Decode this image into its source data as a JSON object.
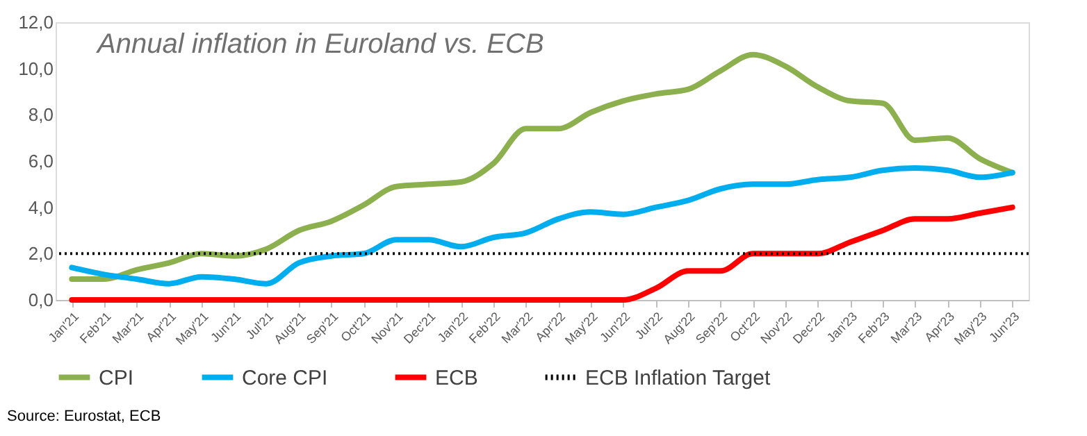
{
  "chart_data": {
    "type": "line",
    "title": "Annual inflation in Euroland vs. ECB",
    "categories": [
      "Jan'21",
      "Feb'21",
      "Mar'21",
      "Apr'21",
      "May'21",
      "Jun'21",
      "Jul'21",
      "Aug'21",
      "Sep'21",
      "Oct'21",
      "Nov'21",
      "Dec'21",
      "Jan'22",
      "Feb'22",
      "Mar'22",
      "Apr'22",
      "May'22",
      "Jun'22",
      "Jul'22",
      "Aug'22",
      "Sep'22",
      "Oct'22",
      "Nov'22",
      "Dec'22",
      "Jan'23",
      "Feb'23",
      "Mar'23",
      "Apr'23",
      "May'23",
      "Jun'23"
    ],
    "series": [
      {
        "name": "CPI",
        "color": "#8db04f",
        "values": [
          0.9,
          0.9,
          1.3,
          1.6,
          2.0,
          1.9,
          2.2,
          3.0,
          3.4,
          4.1,
          4.9,
          5.0,
          5.1,
          5.9,
          7.4,
          7.4,
          8.1,
          8.6,
          8.9,
          9.1,
          9.9,
          10.6,
          10.1,
          9.2,
          8.6,
          8.5,
          6.9,
          7.0,
          6.1,
          5.5
        ]
      },
      {
        "name": "Core CPI",
        "color": "#00aeef",
        "values": [
          1.4,
          1.1,
          0.9,
          0.7,
          1.0,
          0.9,
          0.7,
          1.6,
          1.9,
          2.0,
          2.6,
          2.6,
          2.3,
          2.7,
          2.9,
          3.5,
          3.8,
          3.7,
          4.0,
          4.3,
          4.8,
          5.0,
          5.0,
          5.2,
          5.3,
          5.6,
          5.7,
          5.6,
          5.3,
          5.5
        ]
      },
      {
        "name": "ECB",
        "color": "#ff0000",
        "values": [
          0,
          0,
          0,
          0,
          0,
          0,
          0,
          0,
          0,
          0,
          0,
          0,
          0,
          0,
          0,
          0,
          0,
          0,
          0.5,
          1.25,
          1.25,
          2.0,
          2.0,
          2.0,
          2.5,
          3.0,
          3.5,
          3.5,
          3.75,
          4.0
        ]
      }
    ],
    "ylim": [
      0,
      12
    ],
    "yticks": [
      {
        "value": 0,
        "label": "0,0"
      },
      {
        "value": 2,
        "label": "2,0"
      },
      {
        "value": 4,
        "label": "4,0"
      },
      {
        "value": 6,
        "label": "6,0"
      },
      {
        "value": 8,
        "label": "8,0"
      },
      {
        "value": 10,
        "label": "10,0"
      },
      {
        "value": 12,
        "label": "12,0"
      }
    ],
    "ref_lines": [
      {
        "axis": "y",
        "value": 2,
        "label": "ECB Inflation Target",
        "color": "#000000",
        "line_style": "dotted"
      }
    ],
    "legend": "bottom",
    "grid": false,
    "marker": "none",
    "line_style": "solid",
    "annotations": [
      "Source: Eurostat, ECB"
    ]
  }
}
